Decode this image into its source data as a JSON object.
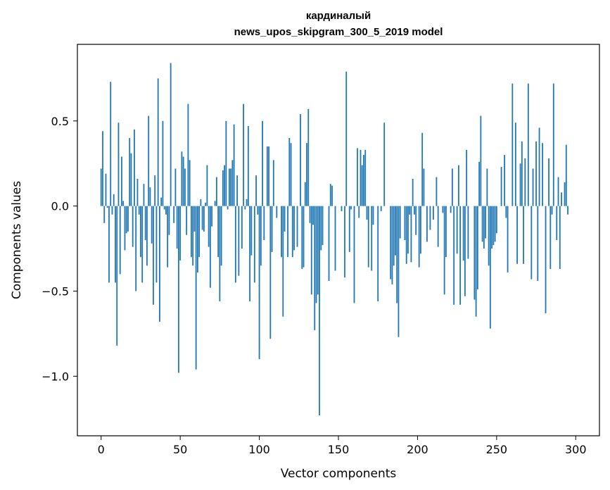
{
  "chart_data": {
    "type": "bar",
    "title_line1": "кардиналый",
    "title_line2": "news_upos_skipgram_300_5_2019 model",
    "xlabel": "Vector components",
    "ylabel": "Components values",
    "xlim": [
      -15,
      315
    ],
    "ylim": [
      -1.35,
      0.95
    ],
    "xticks": [
      0,
      50,
      100,
      150,
      200,
      250,
      300
    ],
    "xtick_labels": [
      "0",
      "50",
      "100",
      "150",
      "200",
      "250",
      "300"
    ],
    "yticks": [
      0.5,
      0.0,
      -0.5,
      -1.0
    ],
    "ytick_labels": [
      "0.5",
      "0.0",
      "−0.5",
      "−1.0"
    ],
    "bar_color": "#1f77b4",
    "values": [
      0.22,
      0.44,
      -0.1,
      0.19,
      -0.01,
      -0.45,
      0.73,
      -0.05,
      0.07,
      -0.45,
      -0.82,
      0.49,
      -0.4,
      0.29,
      0.03,
      -0.26,
      -0.16,
      -0.15,
      0.4,
      0.31,
      -0.24,
      0.45,
      -0.5,
      0.16,
      -0.05,
      -0.3,
      -0.45,
      0.13,
      -0.2,
      -0.35,
      0.53,
      0.11,
      -0.22,
      -0.58,
      0.18,
      -0.45,
      0.75,
      -0.68,
      0.05,
      0.5,
      -0.02,
      -0.05,
      -0.36,
      -0.17,
      0.84,
      0.0,
      -0.1,
      0.22,
      -0.25,
      -0.98,
      -0.32,
      0.32,
      0.29,
      0.22,
      -0.17,
      0.6,
      0.27,
      -0.3,
      -0.35,
      -0.15,
      -0.96,
      -0.39,
      -0.3,
      0.04,
      -0.14,
      -0.15,
      0.02,
      0.24,
      -0.24,
      -0.48,
      -0.12,
      0.0,
      0.03,
      0.17,
      -0.3,
      -0.56,
      -0.35,
      0.21,
      0.24,
      0.5,
      -0.02,
      0.22,
      0.22,
      0.27,
      0.48,
      -0.45,
      0.18,
      -0.41,
      0.0,
      -0.25,
      0.6,
      -0.02,
      0.04,
      0.47,
      -0.56,
      -0.29,
      0.0,
      -0.45,
      0.18,
      -0.05,
      -0.9,
      -0.35,
      0.5,
      -0.2,
      0.0,
      0.35,
      0.35,
      -0.78,
      -0.27,
      0.27,
      0.0,
      -0.07,
      0.0,
      0.0,
      -0.3,
      -0.65,
      -0.15,
      0.0,
      -0.3,
      0.4,
      0.37,
      -0.3,
      -0.26,
      0.0,
      -0.24,
      0.0,
      0.54,
      -0.37,
      -0.36,
      0.14,
      0.37,
      0.57,
      -0.1,
      -0.52,
      -0.11,
      -0.73,
      -0.57,
      -0.52,
      -1.23,
      -0.26,
      -0.23,
      0.0,
      0.0,
      0.0,
      -0.44,
      0.13,
      0.12,
      0.0,
      -0.38,
      0.0,
      0.0,
      0.0,
      -0.03,
      0.0,
      -0.42,
      0.79,
      0.0,
      -0.27,
      -0.02,
      0.0,
      -0.57,
      0.0,
      0.34,
      -0.07,
      0.33,
      0.24,
      0.3,
      0.33,
      -0.08,
      -0.36,
      0.0,
      -0.38,
      -0.11,
      0.0,
      0.0,
      -0.56,
      0.0,
      -0.03,
      0.0,
      0.49,
      0.0,
      0.0,
      0.0,
      -0.43,
      -0.46,
      -0.35,
      -0.29,
      -0.57,
      -0.77,
      -0.19,
      0.0,
      0.0,
      -0.2,
      -0.34,
      -0.28,
      -0.05,
      -0.33,
      0.16,
      -0.05,
      -0.17,
      0.0,
      -0.36,
      -0.28,
      0.43,
      0.22,
      0.0,
      -0.21,
      0.0,
      -0.14,
      0.0,
      -0.08,
      0.0,
      0.17,
      -0.24,
      0.0,
      0.0,
      -0.04,
      -0.52,
      -0.3,
      0.0,
      0.0,
      -0.04,
      0.22,
      -0.58,
      0.0,
      -0.28,
      0.24,
      -0.58,
      0.0,
      -0.32,
      -0.53,
      0.33,
      -0.31,
      0.0,
      0.0,
      0.0,
      -0.55,
      -0.65,
      -0.49,
      0.26,
      0.53,
      -0.21,
      -0.25,
      -0.19,
      0.22,
      -0.35,
      -0.72,
      -0.25,
      -0.23,
      -0.21,
      -0.16,
      0.0,
      0.0,
      0.23,
      0.0,
      0.3,
      -0.07,
      -0.39,
      0.0,
      0.0,
      0.72,
      0.0,
      0.49,
      -0.34,
      0.0,
      0.25,
      0.38,
      -0.34,
      0.28,
      0.0,
      0.72,
      0.0,
      -0.43,
      0.22,
      0.0,
      0.38,
      -0.44,
      0.46,
      0.0,
      0.37,
      0.0,
      -0.63,
      0.0,
      0.28,
      -0.37,
      -0.05,
      0.72,
      0.0,
      -0.2,
      0.17,
      -0.37,
      0.08,
      0.0,
      0.14,
      0.36,
      -0.05
    ]
  }
}
